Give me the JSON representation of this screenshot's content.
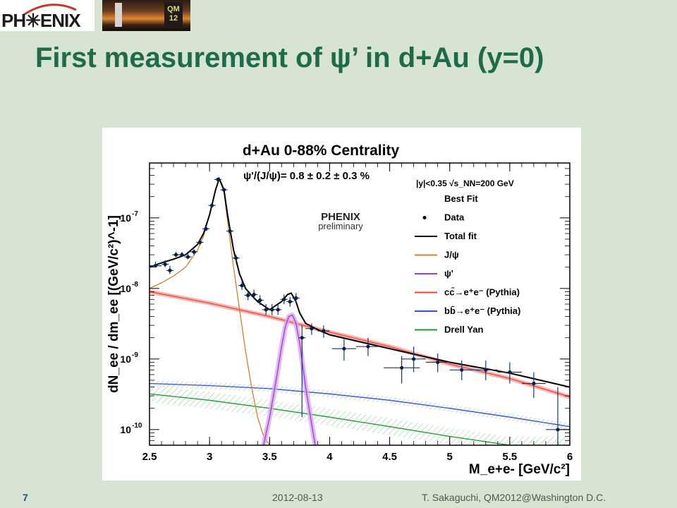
{
  "header": {
    "logo_text": "PH✳ENIX",
    "photo_badge": "QM 12"
  },
  "slide": {
    "title": "First measurement of ψ’ in d+Au (y=0)"
  },
  "footer": {
    "page_number": "7",
    "date": "2012-08-13",
    "author": "T. Sakaguchi, QM2012@Washington D.C."
  },
  "chart_data": {
    "type": "line",
    "title": "d+Au 0-88% Centrality",
    "ratio_text": "ψ'/(J/ψ)= 0.8 ± 0.2 ± 0.3 %",
    "kinematics_text": "|y|<0.35 √s_NN=200 GeV",
    "watermark": [
      "PHENIX",
      "preliminary"
    ],
    "xlabel": "M_e+e- [GeV/c²]",
    "ylabel": "dN_ee / dm_ee [(GeV/c²)^-1]",
    "xlim": [
      2.5,
      6
    ],
    "ylim": [
      6e-11,
      6e-07
    ],
    "log_y": true,
    "x_ticks": [
      "2.5",
      "3",
      "3.5",
      "4",
      "4.5",
      "5",
      "5.5",
      "6"
    ],
    "y_ticks": [
      {
        "value": 1e-07,
        "label": "10^-7"
      },
      {
        "value": 1e-08,
        "label": "10^-8"
      },
      {
        "value": 1e-09,
        "label": "10^-9"
      },
      {
        "value": 1e-10,
        "label": "10^-10"
      }
    ],
    "legend_heading": "Best Fit",
    "legend_placement": "top-right",
    "legend": [
      {
        "name": "Data",
        "kind": "marker",
        "color": "#000000"
      },
      {
        "name": "Total fit",
        "kind": "line",
        "color": "#000000"
      },
      {
        "name": "J/ψ",
        "kind": "line",
        "color": "#d0812a"
      },
      {
        "name": "ψ'",
        "kind": "line",
        "color": "#a23bd1"
      },
      {
        "name": "cc̄→e⁺e⁻ (Pythia)",
        "kind": "line",
        "color": "#f0463a"
      },
      {
        "name": "bb̄→e⁺e⁻ (Pythia)",
        "kind": "line",
        "color": "#2d56c8"
      },
      {
        "name": "Drell Yan",
        "kind": "line",
        "color": "#1f9a2d"
      }
    ],
    "data_points": [
      {
        "x": 2.55,
        "y": 2.1e-08,
        "ex": 0.05,
        "ey_lo": 2e-08,
        "ey_hi": 2.4e-08
      },
      {
        "x": 2.63,
        "y": 2.2e-08,
        "ex": 0.03,
        "ey_lo": 2e-08,
        "ey_hi": 2.5e-08
      },
      {
        "x": 2.67,
        "y": 1.8e-08,
        "ex": 0.03,
        "ey_lo": 1.6e-08,
        "ey_hi": 2.1e-08
      },
      {
        "x": 2.72,
        "y": 3e-08,
        "ex": 0.03,
        "ey_lo": 2.8e-08,
        "ey_hi": 3.3e-08
      },
      {
        "x": 2.77,
        "y": 3e-08,
        "ex": 0.03,
        "ey_lo": 2.8e-08,
        "ey_hi": 3.3e-08
      },
      {
        "x": 2.82,
        "y": 2.8e-08,
        "ex": 0.03,
        "ey_lo": 2.6e-08,
        "ey_hi": 3.1e-08
      },
      {
        "x": 2.87,
        "y": 3.3e-08,
        "ex": 0.03,
        "ey_lo": 3e-08,
        "ey_hi": 3.6e-08
      },
      {
        "x": 2.92,
        "y": 4.5e-08,
        "ex": 0.03,
        "ey_lo": 4.1e-08,
        "ey_hi": 4.9e-08
      },
      {
        "x": 2.97,
        "y": 7e-08,
        "ex": 0.03,
        "ey_lo": 6.5e-08,
        "ey_hi": 7.6e-08
      },
      {
        "x": 3.02,
        "y": 1.5e-07,
        "ex": 0.03,
        "ey_lo": 1.4e-07,
        "ey_hi": 1.6e-07
      },
      {
        "x": 3.07,
        "y": 3.5e-07,
        "ex": 0.03,
        "ey_lo": 3.3e-07,
        "ey_hi": 3.7e-07
      },
      {
        "x": 3.12,
        "y": 2.5e-07,
        "ex": 0.03,
        "ey_lo": 2.35e-07,
        "ey_hi": 2.65e-07
      },
      {
        "x": 3.17,
        "y": 6.5e-08,
        "ex": 0.03,
        "ey_lo": 6e-08,
        "ey_hi": 7e-08
      },
      {
        "x": 3.22,
        "y": 2.7e-08,
        "ex": 0.03,
        "ey_lo": 2.4e-08,
        "ey_hi": 3e-08
      },
      {
        "x": 3.27,
        "y": 1.1e-08,
        "ex": 0.03,
        "ey_lo": 9.5e-09,
        "ey_hi": 1.3e-08
      },
      {
        "x": 3.32,
        "y": 8e-09,
        "ex": 0.03,
        "ey_lo": 6.8e-09,
        "ey_hi": 9.5e-09
      },
      {
        "x": 3.37,
        "y": 8.2e-09,
        "ex": 0.03,
        "ey_lo": 7e-09,
        "ey_hi": 9.6e-09
      },
      {
        "x": 3.42,
        "y": 6.8e-09,
        "ex": 0.03,
        "ey_lo": 5.8e-09,
        "ey_hi": 8e-09
      },
      {
        "x": 3.47,
        "y": 5e-09,
        "ex": 0.03,
        "ey_lo": 4.2e-09,
        "ey_hi": 6e-09
      },
      {
        "x": 3.52,
        "y": 5e-09,
        "ex": 0.03,
        "ey_lo": 4.2e-09,
        "ey_hi": 6e-09
      },
      {
        "x": 3.57,
        "y": 5e-09,
        "ex": 0.03,
        "ey_lo": 4.2e-09,
        "ey_hi": 6e-09
      },
      {
        "x": 3.62,
        "y": 7e-09,
        "ex": 0.03,
        "ey_lo": 6e-09,
        "ey_hi": 8.2e-09
      },
      {
        "x": 3.67,
        "y": 6.5e-09,
        "ex": 0.03,
        "ey_lo": 5.5e-09,
        "ey_hi": 7.6e-09
      },
      {
        "x": 3.72,
        "y": 7.3e-09,
        "ex": 0.03,
        "ey_lo": 6.2e-09,
        "ey_hi": 8.6e-09
      },
      {
        "x": 3.77,
        "y": 2e-09,
        "ex": 0.03,
        "ey_lo": 1.5e-10,
        "ey_hi": 3e-09
      },
      {
        "x": 3.85,
        "y": 2.7e-09,
        "ex": 0.05,
        "ey_lo": 2.2e-09,
        "ey_hi": 3.2e-09
      },
      {
        "x": 3.95,
        "y": 2.5e-09,
        "ex": 0.05,
        "ey_lo": 2e-09,
        "ey_hi": 3e-09
      },
      {
        "x": 4.12,
        "y": 1.4e-09,
        "ex": 0.1,
        "ey_lo": 9.5e-10,
        "ey_hi": 1.9e-09
      },
      {
        "x": 4.32,
        "y": 1.5e-09,
        "ex": 0.1,
        "ey_lo": 1.1e-09,
        "ey_hi": 2e-09
      },
      {
        "x": 4.6,
        "y": 7.5e-10,
        "ex": 0.15,
        "ey_lo": 4.5e-10,
        "ey_hi": 1.1e-09
      },
      {
        "x": 4.7,
        "y": 1e-09,
        "ex": 0.1,
        "ey_lo": 6.5e-10,
        "ey_hi": 1.5e-09
      },
      {
        "x": 4.9,
        "y": 9e-10,
        "ex": 0.1,
        "ey_lo": 6.5e-10,
        "ey_hi": 1.2e-09
      },
      {
        "x": 5.1,
        "y": 7e-10,
        "ex": 0.1,
        "ey_lo": 5e-10,
        "ey_hi": 9.5e-10
      },
      {
        "x": 5.3,
        "y": 7e-10,
        "ex": 0.1,
        "ey_lo": 5e-10,
        "ey_hi": 9.5e-10
      },
      {
        "x": 5.5,
        "y": 6.5e-10,
        "ex": 0.1,
        "ey_lo": 4.5e-10,
        "ey_hi": 9e-10
      },
      {
        "x": 5.7,
        "y": 4.5e-10,
        "ex": 0.1,
        "ey_lo": 2.8e-10,
        "ey_hi": 6.5e-10
      },
      {
        "x": 5.9,
        "y": 1e-10,
        "ex": 0.1,
        "ey_lo": 6e-11,
        "ey_hi": 4e-10
      }
    ],
    "series": [
      {
        "name": "Total fit",
        "color": "#000000",
        "x": [
          2.5,
          2.6,
          2.7,
          2.8,
          2.9,
          2.95,
          3.0,
          3.05,
          3.08,
          3.12,
          3.15,
          3.2,
          3.25,
          3.3,
          3.35,
          3.4,
          3.5,
          3.6,
          3.65,
          3.68,
          3.72,
          3.75,
          3.8,
          3.9,
          4.0,
          4.5,
          5.0,
          5.5,
          6.0
        ],
        "y": [
          2e-08,
          2.3e-08,
          2.6e-08,
          3e-08,
          4.2e-08,
          6e-08,
          1.1e-07,
          2.5e-07,
          3.6e-07,
          2.5e-07,
          1.1e-07,
          3.5e-08,
          1.6e-08,
          1e-08,
          8e-09,
          6.5e-09,
          5e-09,
          6.5e-09,
          8.2e-09,
          8.6e-09,
          6.5e-09,
          4.5e-09,
          3.2e-09,
          2.6e-09,
          2.2e-09,
          1.4e-09,
          9e-10,
          6.3e-10,
          4e-10
        ]
      },
      {
        "name": "J/ψ",
        "color": "#d0812a",
        "x": [
          2.5,
          2.6,
          2.7,
          2.8,
          2.9,
          2.95,
          3.0,
          3.05,
          3.08,
          3.12,
          3.15,
          3.2,
          3.25,
          3.3,
          3.35,
          3.4,
          3.45,
          3.5
        ],
        "y": [
          1e-08,
          1.2e-08,
          1.5e-08,
          2e-08,
          3.5e-08,
          5.5e-08,
          1.1e-07,
          2.5e-07,
          3.6e-07,
          2.3e-07,
          9e-08,
          2e-08,
          5e-09,
          1.3e-09,
          4e-10,
          1.5e-10,
          8e-11,
          6e-11
        ]
      },
      {
        "name": "ψ'",
        "color": "#a23bd1",
        "x": [
          3.45,
          3.5,
          3.55,
          3.6,
          3.63,
          3.66,
          3.69,
          3.72,
          3.75,
          3.8,
          3.85,
          3.88
        ],
        "y": [
          6e-11,
          1.5e-10,
          4.5e-10,
          1.5e-09,
          2.8e-09,
          4e-09,
          4.2e-09,
          3.2e-09,
          1.7e-09,
          4e-10,
          1.2e-10,
          6e-11
        ]
      },
      {
        "name": "cc̄→e⁺e⁻ (Pythia)",
        "color": "#f0463a",
        "x": [
          2.5,
          3.0,
          3.5,
          4.0,
          4.5,
          5.0,
          5.5,
          6.0
        ],
        "y": [
          9e-09,
          6.2e-09,
          4e-09,
          2.4e-09,
          1.5e-09,
          8.5e-10,
          5.3e-10,
          2.9e-10
        ]
      },
      {
        "name": "bb̄→e⁺e⁻ (Pythia)",
        "color": "#2d56c8",
        "x": [
          2.5,
          3.0,
          3.5,
          4.0,
          4.5,
          5.0,
          5.5,
          6.0
        ],
        "y": [
          4.5e-10,
          4.2e-10,
          3.8e-10,
          3.2e-10,
          2.6e-10,
          2e-10,
          1.5e-10,
          1.1e-10
        ]
      },
      {
        "name": "Drell Yan",
        "color": "#1f9a2d",
        "x": [
          2.5,
          3.0,
          3.5,
          4.0,
          4.5,
          5.0,
          5.5,
          6.0
        ],
        "y": [
          3.2e-10,
          2.6e-10,
          2e-10,
          1.5e-10,
          1.1e-10,
          8e-11,
          6e-11,
          4.6e-11
        ]
      }
    ]
  }
}
